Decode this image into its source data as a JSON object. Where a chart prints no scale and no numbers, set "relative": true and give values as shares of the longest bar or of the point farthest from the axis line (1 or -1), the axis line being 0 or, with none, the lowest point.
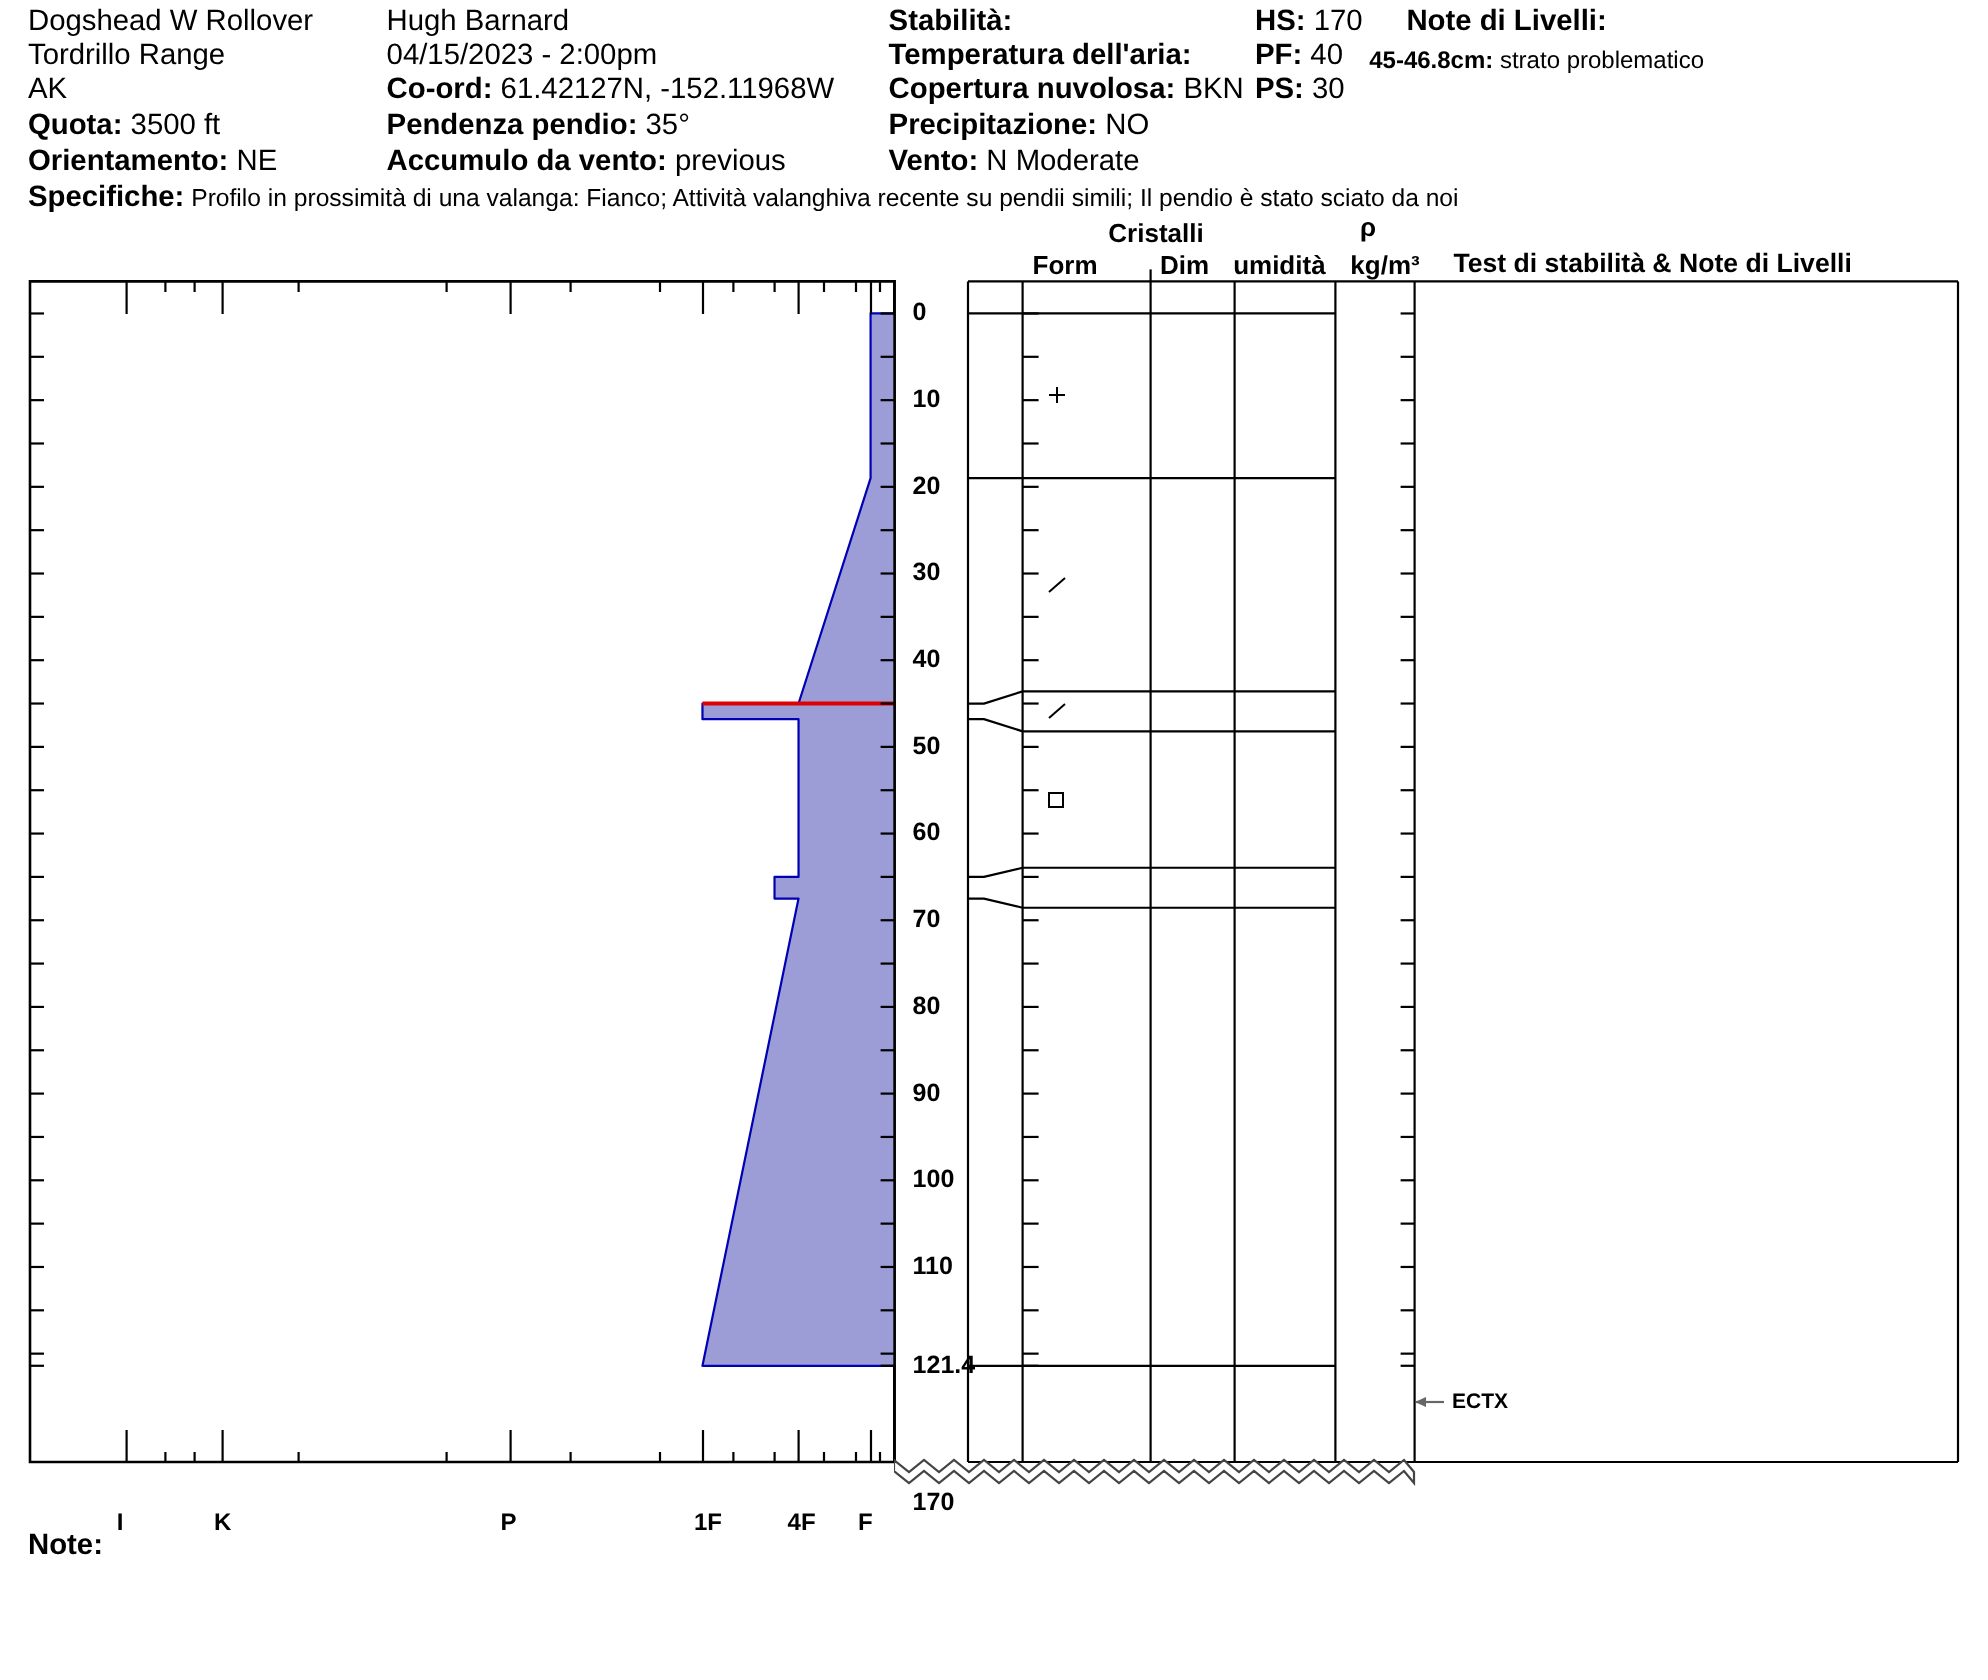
{
  "chart_data": {
    "type": "area",
    "orientation": "horizontal",
    "relative": true,
    "series": [
      {
        "color": "#9c9cd6",
        "x": [
          0,
          0,
          19,
          45,
          45,
          46.8,
          46.8,
          65,
          65,
          67.5,
          67.5,
          121.4,
          121.4
        ],
        "values": [
          0,
          -0.125,
          -0.125,
          -0.5,
          -1,
          -1,
          -0.5,
          -0.5,
          -0.625,
          -0.625,
          -0.5,
          -1,
          0
        ]
      }
    ],
    "ylim": [
      132.5,
      -3.7
    ],
    "yticks": [
      0,
      {
        "value": 5,
        "label": null
      },
      10,
      {
        "value": 15,
        "label": null
      },
      20,
      {
        "value": 25,
        "label": null
      },
      30,
      {
        "value": 35,
        "label": null
      },
      40,
      {
        "value": 45,
        "label": null
      },
      50,
      {
        "value": 55,
        "label": null
      },
      60,
      {
        "value": 65,
        "label": null
      },
      70,
      {
        "value": 75,
        "label": null
      },
      80,
      {
        "value": 85,
        "label": null
      },
      90,
      {
        "value": 95,
        "label": null
      },
      100,
      {
        "value": 105,
        "label": null
      },
      110,
      {
        "value": 115,
        "label": null
      },
      {
        "value": 120,
        "label": null
      },
      121.4
    ],
    "ref_lines": [
      {
        "axis": "y",
        "value": 45,
        "color": "#e00000"
      }
    ],
    "annotations": [
      "Dogshead W Rollover",
      "Tordrillo Range",
      "AK",
      "Quota: 3500 ft",
      "Orientamento: NE",
      "Hugh Barnard",
      "04/15/2023 - 2:00pm",
      "Co-ord: 61.42127N, -152.11968W",
      "Pendenza pendio: 35°",
      "Accumulo da vento: previous",
      "Stabilità:",
      "Temperatura dell'aria:",
      "Copertura nuvolosa: BKN",
      "Precipitazione: NO",
      "Vento: N Moderate",
      "HS: 170",
      "PF: 40",
      "PS: 30",
      "Note di Livelli:",
      "45-46.8cm: strato problematico",
      "Specifiche: Profilo in prossimità di una valanga: Fianco; Attività valanghiva recente su pendii simili; Il pendio è stato sciato da noi",
      "Cristalli",
      "Form",
      "Dim",
      "umidità",
      "ρ",
      "kg/m³",
      "Test di stabilità & Note di Livelli",
      "ECTX",
      "Note:",
      "170",
      "I",
      "K",
      "P",
      "1F",
      "4F",
      "F"
    ]
  }
}
